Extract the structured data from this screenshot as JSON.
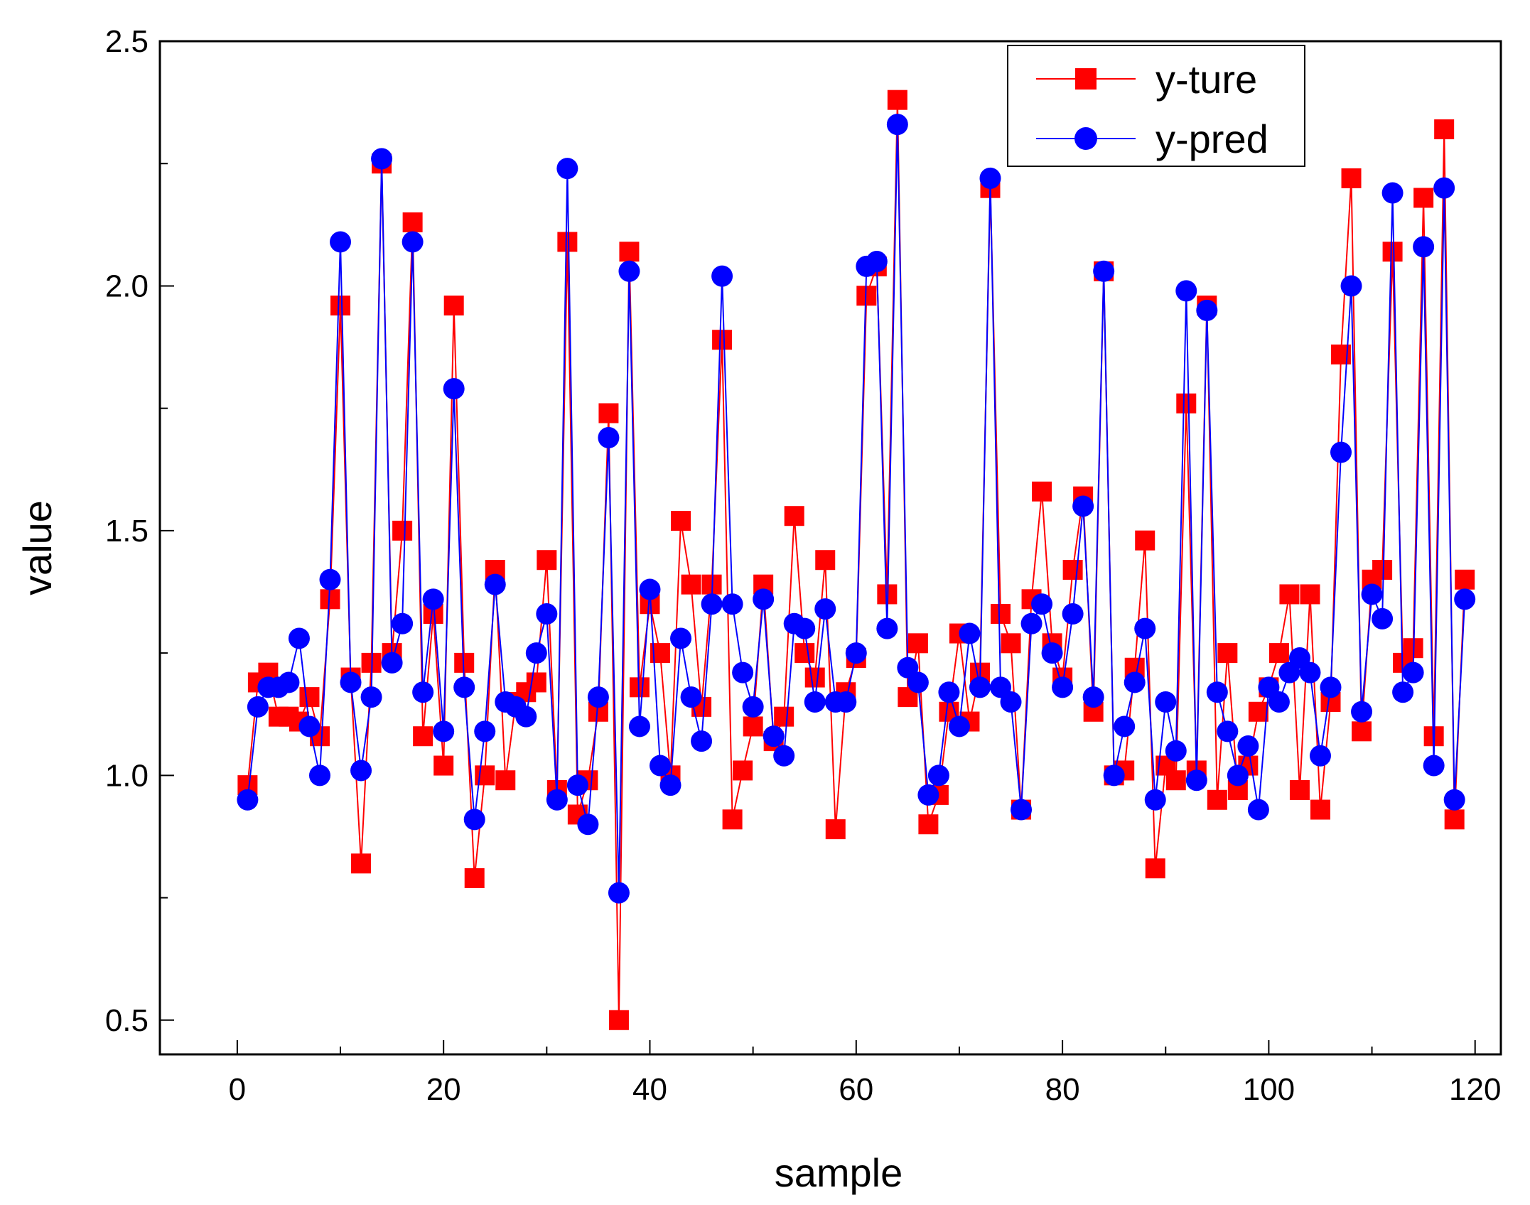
{
  "chart_data": {
    "type": "line",
    "title": "",
    "xlabel": "sample",
    "ylabel": "value",
    "xlim": [
      -7.5,
      122.5
    ],
    "ylim": [
      0.43,
      2.5
    ],
    "xticks": [
      0,
      20,
      40,
      60,
      80,
      100,
      120
    ],
    "xminor": [
      10,
      30,
      50,
      70,
      90,
      110
    ],
    "yticks": [
      0.5,
      1.0,
      1.5,
      2.0,
      2.5
    ],
    "yminor": [
      0.75,
      1.25,
      1.75,
      2.25
    ],
    "ytick_labels": [
      "0.5",
      "1.0",
      "1.5",
      "2.0",
      "2.5"
    ],
    "grid": false,
    "legend_position": "top-right",
    "series": [
      {
        "name": "y-ture",
        "color": "#ff0000",
        "marker": "square",
        "values": [
          0.98,
          1.19,
          1.21,
          1.12,
          1.12,
          1.11,
          1.16,
          1.08,
          1.36,
          1.96,
          1.2,
          0.82,
          1.23,
          2.25,
          1.25,
          1.5,
          2.13,
          1.08,
          1.33,
          1.02,
          1.96,
          1.23,
          0.79,
          1.0,
          1.42,
          0.99,
          1.15,
          1.17,
          1.19,
          1.44,
          0.97,
          2.09,
          0.92,
          0.99,
          1.13,
          1.74,
          0.5,
          2.07,
          1.18,
          1.35,
          1.25,
          1.0,
          1.52,
          1.39,
          1.14,
          1.39,
          1.89,
          0.91,
          1.01,
          1.1,
          1.39,
          1.07,
          1.12,
          1.53,
          1.25,
          1.2,
          1.44,
          0.89,
          1.17,
          1.24,
          1.98,
          2.04,
          1.37,
          2.38,
          1.16,
          1.27,
          0.9,
          0.96,
          1.13,
          1.29,
          1.11,
          1.21,
          2.2,
          1.33,
          1.27,
          0.93,
          1.36,
          1.58,
          1.27,
          1.2,
          1.42,
          1.57,
          1.13,
          2.03,
          1.0,
          1.01,
          1.22,
          1.48,
          0.81,
          1.02,
          0.99,
          1.76,
          1.01,
          1.96,
          0.95,
          1.25,
          0.97,
          1.02,
          1.13,
          1.18,
          1.25,
          1.37,
          0.97,
          1.37,
          0.93,
          1.15,
          1.86,
          2.22,
          1.09,
          1.4,
          1.42,
          2.07,
          1.23,
          1.26,
          2.18,
          1.08,
          2.32,
          0.91,
          1.4
        ]
      },
      {
        "name": "y-pred",
        "color": "#0000ff",
        "marker": "circle",
        "values": [
          0.95,
          1.14,
          1.18,
          1.18,
          1.19,
          1.28,
          1.1,
          1.0,
          1.4,
          2.09,
          1.19,
          1.01,
          1.16,
          2.26,
          1.23,
          1.31,
          2.09,
          1.17,
          1.36,
          1.09,
          1.79,
          1.18,
          0.91,
          1.09,
          1.39,
          1.15,
          1.14,
          1.12,
          1.25,
          1.33,
          0.95,
          2.24,
          0.98,
          0.9,
          1.16,
          1.69,
          0.76,
          2.03,
          1.1,
          1.38,
          1.02,
          0.98,
          1.28,
          1.16,
          1.07,
          1.35,
          2.02,
          1.35,
          1.21,
          1.14,
          1.36,
          1.08,
          1.04,
          1.31,
          1.3,
          1.15,
          1.34,
          1.15,
          1.15,
          1.25,
          2.04,
          2.05,
          1.3,
          2.33,
          1.22,
          1.19,
          0.96,
          1.0,
          1.17,
          1.1,
          1.29,
          1.18,
          2.22,
          1.18,
          1.15,
          0.93,
          1.31,
          1.35,
          1.25,
          1.18,
          1.33,
          1.55,
          1.16,
          2.03,
          1.0,
          1.1,
          1.19,
          1.3,
          0.95,
          1.15,
          1.05,
          1.99,
          0.99,
          1.95,
          1.17,
          1.09,
          1.0,
          1.06,
          0.93,
          1.18,
          1.15,
          1.21,
          1.24,
          1.21,
          1.04,
          1.18,
          1.66,
          2.0,
          1.13,
          1.37,
          1.32,
          2.19,
          1.17,
          1.21,
          2.08,
          1.02,
          2.2,
          0.95,
          1.36
        ]
      }
    ]
  }
}
